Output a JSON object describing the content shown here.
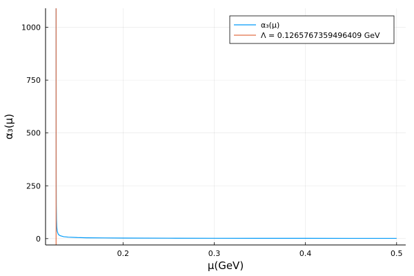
{
  "chart_data": {
    "type": "line",
    "title": "",
    "xlabel": "μ(GeV)",
    "ylabel": "α₃(μ)",
    "xlim": [
      0.115,
      0.51
    ],
    "ylim": [
      -30,
      1090
    ],
    "x_ticks": [
      0.2,
      0.3,
      0.4,
      0.5
    ],
    "x_tick_labels": [
      "0.2",
      "0.3",
      "0.4",
      "0.5"
    ],
    "y_ticks": [
      0,
      250,
      500,
      750,
      1000
    ],
    "y_tick_labels": [
      "0",
      "250",
      "500",
      "750",
      "1000"
    ],
    "grid": true,
    "legend_position": "top-right",
    "series": [
      {
        "name": "α₃(μ)",
        "color": "#009af9",
        "x": [
          0.1266,
          0.1267,
          0.1268,
          0.127,
          0.1273,
          0.1278,
          0.129,
          0.131,
          0.135,
          0.14,
          0.15,
          0.16,
          0.18,
          0.2,
          0.25,
          0.3,
          0.35,
          0.4,
          0.45,
          0.5
        ],
        "y": [
          1090,
          300,
          160,
          90,
          55,
          35,
          20,
          14,
          9,
          7,
          5,
          4,
          3.2,
          2.7,
          2.0,
          1.7,
          1.5,
          1.35,
          1.25,
          1.15
        ]
      },
      {
        "name": "Λ = 0.1265767359496409 GeV",
        "color": "#e26f46",
        "vline_x": 0.1265767359496409
      }
    ]
  }
}
